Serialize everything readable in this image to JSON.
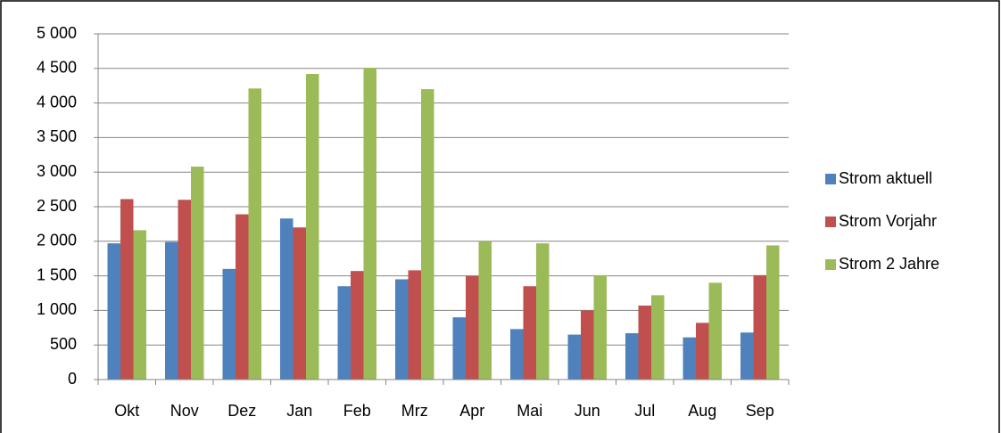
{
  "chart_data": {
    "type": "bar",
    "categories": [
      "Okt",
      "Nov",
      "Dez",
      "Jan",
      "Feb",
      "Mrz",
      "Apr",
      "Mai",
      "Jun",
      "Jul",
      "Aug",
      "Sep"
    ],
    "series": [
      {
        "name": "Strom aktuell",
        "color": "#4f81bd",
        "values": [
          1970,
          1990,
          1600,
          2330,
          1350,
          1450,
          900,
          730,
          650,
          670,
          610,
          680
        ]
      },
      {
        "name": "Strom Vorjahr",
        "color": "#c0504d",
        "values": [
          2610,
          2600,
          2390,
          2200,
          1570,
          1580,
          1500,
          1350,
          1000,
          1070,
          820,
          1510
        ]
      },
      {
        "name": "Strom 2 Jahre",
        "color": "#9bbb59",
        "values": [
          2160,
          3080,
          4210,
          4420,
          4510,
          4200,
          2000,
          1970,
          1510,
          1220,
          1400,
          1940
        ]
      }
    ],
    "ylim": [
      0,
      5000
    ],
    "yticks": [
      0,
      500,
      {
        "value": 1000,
        "label": "1 000"
      },
      {
        "value": 1500,
        "label": "1 500"
      },
      {
        "value": 2000,
        "label": "2 000"
      },
      {
        "value": 2500,
        "label": "2 500"
      },
      {
        "value": 3000,
        "label": "3 000"
      },
      {
        "value": 3500,
        "label": "3 500"
      },
      {
        "value": 4000,
        "label": "4 000"
      },
      {
        "value": 4500,
        "label": "4 500"
      },
      {
        "value": 5000,
        "label": "5 000"
      }
    ],
    "grid": true,
    "legend": "right"
  }
}
